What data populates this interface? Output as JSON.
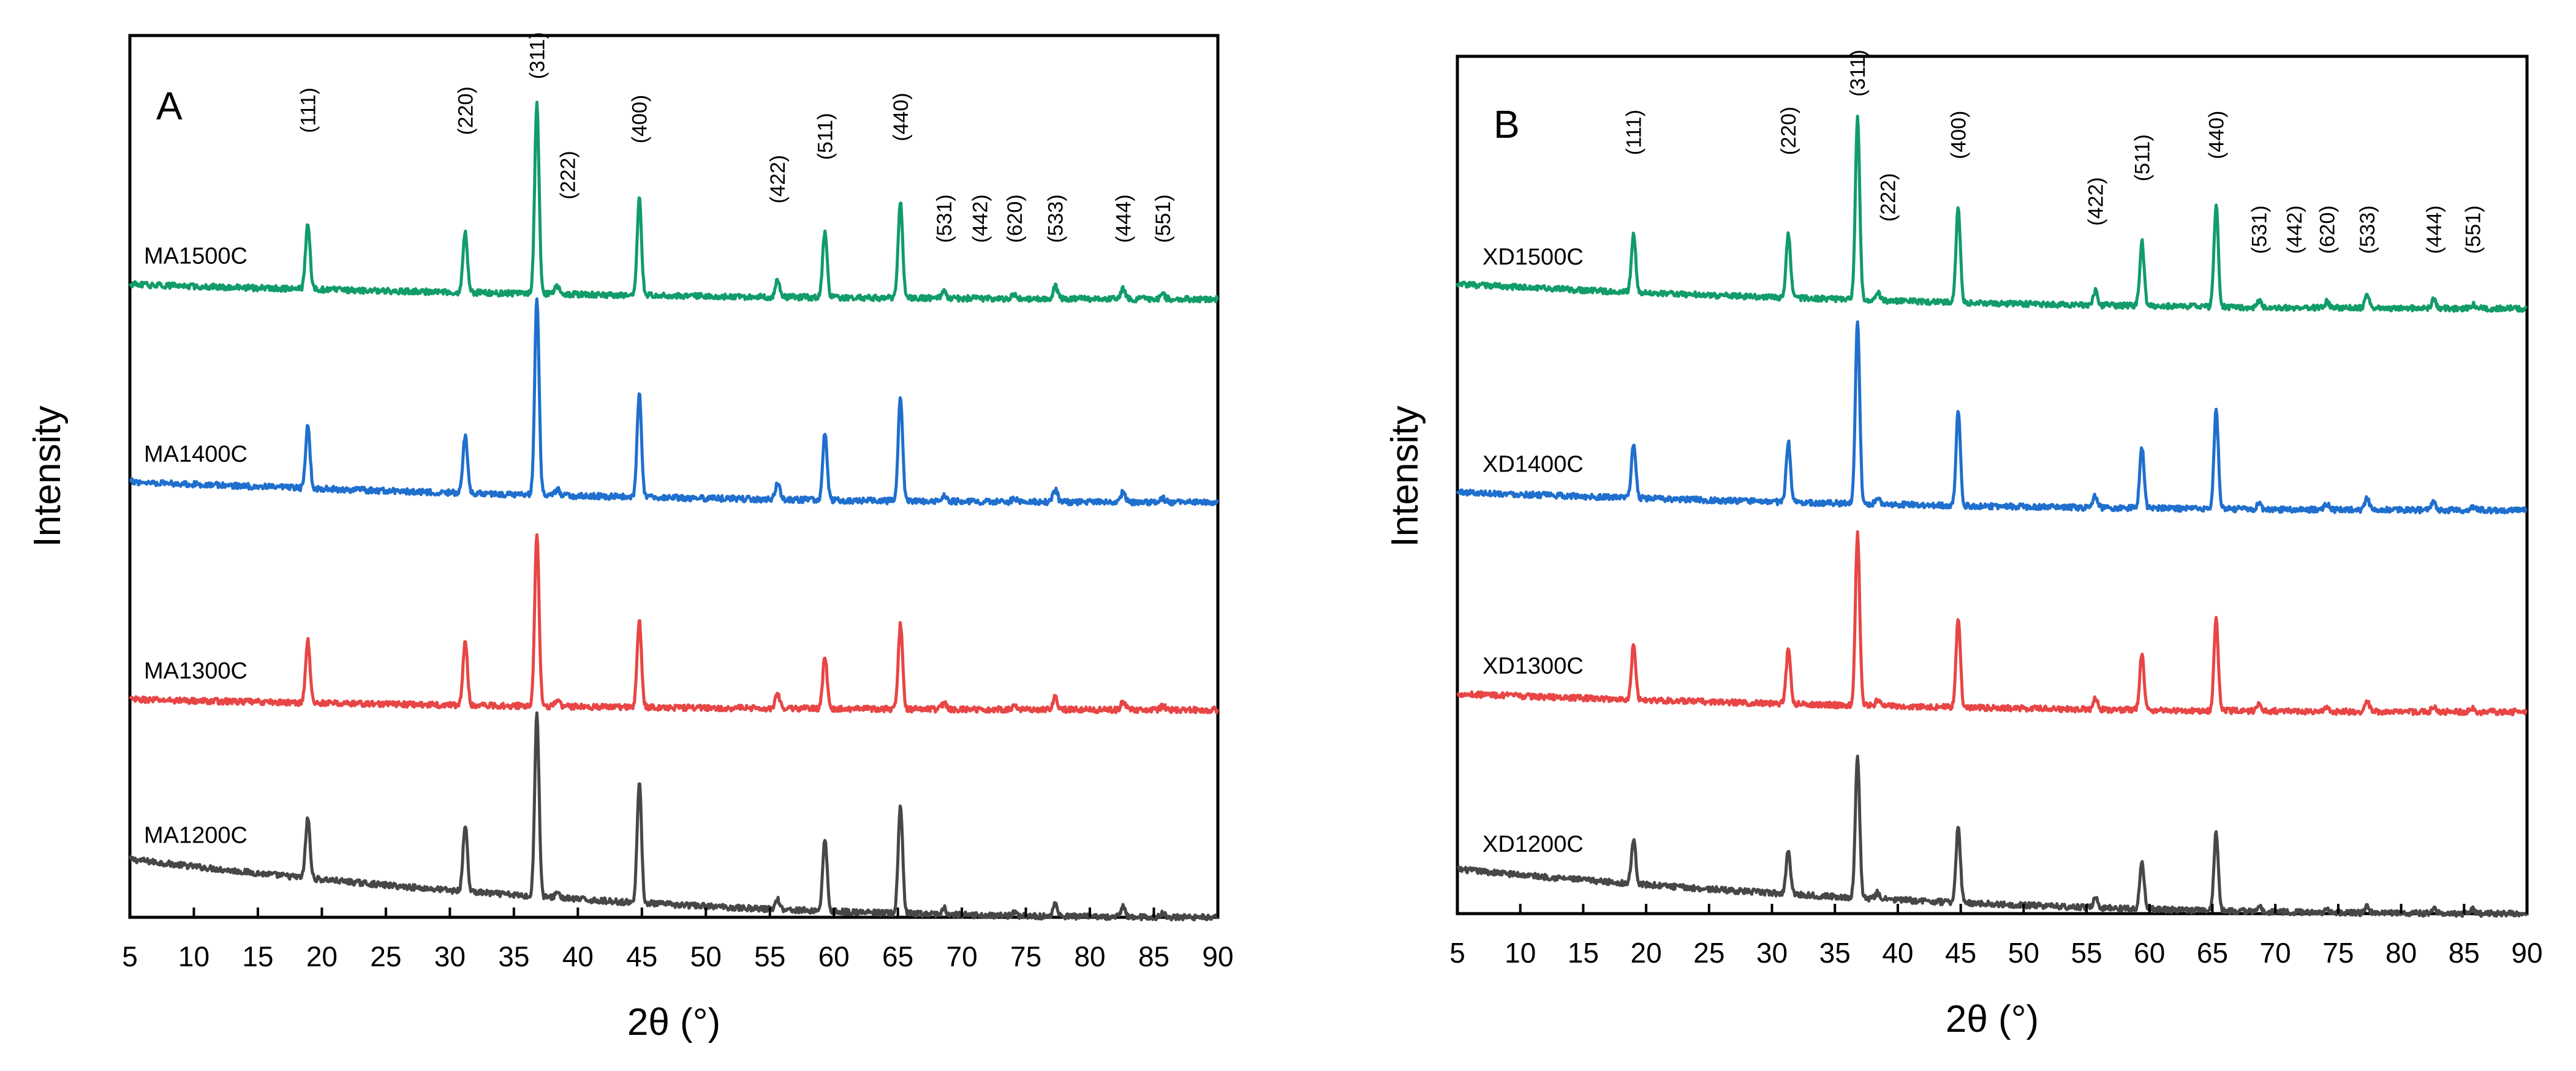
{
  "figure": {
    "panels": [
      {
        "letter": "A",
        "xlabel": "2θ (°)",
        "ylabel": "Intensity",
        "ticks": [
          "5",
          "10",
          "15",
          "20",
          "25",
          "30",
          "35",
          "40",
          "45",
          "50",
          "55",
          "60",
          "65",
          "70",
          "75",
          "80",
          "85",
          "90"
        ]
      },
      {
        "letter": "B",
        "xlabel": "2θ (°)",
        "ylabel": "Intensity",
        "ticks": [
          "5",
          "10",
          "15",
          "20",
          "25",
          "30",
          "35",
          "40",
          "45",
          "50",
          "55",
          "60",
          "65",
          "70",
          "75",
          "80",
          "85",
          "90"
        ]
      }
    ]
  },
  "chart_data": [
    {
      "type": "line",
      "panel": "A",
      "title": "",
      "xlabel": "2θ (°)",
      "ylabel": "Intensity",
      "xlim": [
        5,
        90
      ],
      "ylim": [
        0,
        4.25
      ],
      "xticks": [
        5,
        10,
        15,
        20,
        25,
        30,
        35,
        40,
        45,
        50,
        55,
        60,
        65,
        70,
        75,
        80,
        85,
        90
      ],
      "yticks": [],
      "grid": false,
      "stack_spacing": 1.0,
      "peak_width_deg": 0.17,
      "series": [
        {
          "name": "MA1200C",
          "color": "#474747",
          "offset": 0,
          "baseline_start": 0.28,
          "baseline_end": 0.0,
          "peaks": [
            [
              18.9,
              0.29
            ],
            [
              31.2,
              0.32
            ],
            [
              36.8,
              0.88
            ],
            [
              38.4,
              0.03
            ],
            [
              44.8,
              0.58
            ],
            [
              55.6,
              0.05
            ],
            [
              59.3,
              0.35
            ],
            [
              65.2,
              0.52
            ],
            [
              68.6,
              0.03
            ],
            [
              74.1,
              0.02
            ],
            [
              77.3,
              0.06
            ],
            [
              82.6,
              0.05
            ],
            [
              85.7,
              0.02
            ]
          ]
        },
        {
          "name": "MA1300C",
          "color": "#e84545",
          "offset": 1,
          "baseline_start": 0.05,
          "baseline_end": 0.0,
          "peaks": [
            [
              18.9,
              0.3
            ],
            [
              31.2,
              0.31
            ],
            [
              36.8,
              0.84
            ],
            [
              38.4,
              0.03
            ],
            [
              44.8,
              0.42
            ],
            [
              55.6,
              0.07
            ],
            [
              59.3,
              0.25
            ],
            [
              65.2,
              0.41
            ],
            [
              68.6,
              0.03
            ],
            [
              74.1,
              0.02
            ],
            [
              77.3,
              0.06
            ],
            [
              82.6,
              0.04
            ],
            [
              85.7,
              0.02
            ]
          ]
        },
        {
          "name": "MA1400C",
          "color": "#1f6fce",
          "offset": 2,
          "baseline_start": 0.1,
          "baseline_end": 0.0,
          "peaks": [
            [
              18.9,
              0.3
            ],
            [
              31.2,
              0.28
            ],
            [
              36.8,
              0.95
            ],
            [
              38.4,
              0.03
            ],
            [
              44.8,
              0.5
            ],
            [
              55.6,
              0.08
            ],
            [
              59.3,
              0.32
            ],
            [
              65.2,
              0.51
            ],
            [
              68.6,
              0.03
            ],
            [
              74.1,
              0.02
            ],
            [
              77.3,
              0.06
            ],
            [
              82.6,
              0.05
            ],
            [
              85.7,
              0.02
            ]
          ]
        },
        {
          "name": "MA1500C",
          "color": "#119c69",
          "offset": 3,
          "baseline_start": 0.05,
          "baseline_end": -0.02,
          "peaks": [
            [
              18.9,
              0.32
            ],
            [
              31.2,
              0.29
            ],
            [
              36.8,
              0.92
            ],
            [
              38.4,
              0.04
            ],
            [
              44.8,
              0.47
            ],
            [
              55.6,
              0.08
            ],
            [
              59.3,
              0.32
            ],
            [
              65.2,
              0.46
            ],
            [
              68.6,
              0.03
            ],
            [
              74.1,
              0.02
            ],
            [
              77.3,
              0.06
            ],
            [
              82.6,
              0.05
            ],
            [
              85.7,
              0.02
            ]
          ]
        }
      ],
      "annotations": [
        {
          "label": "(111)",
          "x": 18.9,
          "y": 3.78
        },
        {
          "label": "(220)",
          "x": 31.2,
          "y": 3.77
        },
        {
          "label": "(311)",
          "x": 36.8,
          "y": 4.04
        },
        {
          "label": "(222)",
          "x": 39.2,
          "y": 3.46
        },
        {
          "label": "(400)",
          "x": 44.8,
          "y": 3.73
        },
        {
          "label": "(422)",
          "x": 55.6,
          "y": 3.44
        },
        {
          "label": "(511)",
          "x": 59.3,
          "y": 3.65
        },
        {
          "label": "(440)",
          "x": 65.2,
          "y": 3.74
        },
        {
          "label": "(531)",
          "x": 68.6,
          "y": 3.25
        },
        {
          "label": "(442)",
          "x": 71.4,
          "y": 3.25
        },
        {
          "label": "(620)",
          "x": 74.1,
          "y": 3.25
        },
        {
          "label": "(533)",
          "x": 77.3,
          "y": 3.25
        },
        {
          "label": "(444)",
          "x": 82.6,
          "y": 3.25
        },
        {
          "label": "(551)",
          "x": 85.7,
          "y": 3.25
        }
      ]
    },
    {
      "type": "line",
      "panel": "B",
      "title": "",
      "xlabel": "2θ (°)",
      "ylabel": "Intensity",
      "xlim": [
        5,
        90
      ],
      "ylim": [
        0,
        4.25
      ],
      "xticks": [
        5,
        10,
        15,
        20,
        25,
        30,
        35,
        40,
        45,
        50,
        55,
        60,
        65,
        70,
        75,
        80,
        85,
        90
      ],
      "yticks": [],
      "grid": false,
      "stack_spacing": 1.0,
      "peak_width_deg": 0.17,
      "series": [
        {
          "name": "XD1200C",
          "color": "#474747",
          "offset": 0,
          "baseline_start": 0.22,
          "baseline_end": 0.0,
          "peaks": [
            [
              19.0,
              0.22
            ],
            [
              31.3,
              0.22
            ],
            [
              36.8,
              0.7
            ],
            [
              38.4,
              0.03
            ],
            [
              44.8,
              0.38
            ],
            [
              55.7,
              0.05
            ],
            [
              59.4,
              0.23
            ],
            [
              65.3,
              0.39
            ],
            [
              68.7,
              0.03
            ],
            [
              74.1,
              0.02
            ],
            [
              77.3,
              0.04
            ],
            [
              82.6,
              0.03
            ],
            [
              85.7,
              0.02
            ]
          ]
        },
        {
          "name": "XD1300C",
          "color": "#e84545",
          "offset": 1,
          "baseline_start": 0.09,
          "baseline_end": 0.0,
          "peaks": [
            [
              19.0,
              0.27
            ],
            [
              31.3,
              0.27
            ],
            [
              36.8,
              0.85
            ],
            [
              38.4,
              0.03
            ],
            [
              44.8,
              0.44
            ],
            [
              55.7,
              0.06
            ],
            [
              59.4,
              0.28
            ],
            [
              65.3,
              0.45
            ],
            [
              68.7,
              0.03
            ],
            [
              74.1,
              0.02
            ],
            [
              77.3,
              0.05
            ],
            [
              82.6,
              0.03
            ],
            [
              85.7,
              0.02
            ]
          ]
        },
        {
          "name": "XD1400C",
          "color": "#1f6fce",
          "offset": 2,
          "baseline_start": 0.09,
          "baseline_end": 0.0,
          "peaks": [
            [
              19.0,
              0.27
            ],
            [
              31.3,
              0.3
            ],
            [
              36.8,
              0.91
            ],
            [
              38.4,
              0.03
            ],
            [
              44.8,
              0.47
            ],
            [
              55.7,
              0.06
            ],
            [
              59.4,
              0.3
            ],
            [
              65.3,
              0.5
            ],
            [
              68.7,
              0.03
            ],
            [
              74.1,
              0.03
            ],
            [
              77.3,
              0.06
            ],
            [
              82.6,
              0.04
            ],
            [
              85.7,
              0.02
            ]
          ]
        },
        {
          "name": "XD1500C",
          "color": "#119c69",
          "offset": 3,
          "baseline_start": 0.12,
          "baseline_end": 0.0,
          "peaks": [
            [
              19.0,
              0.29
            ],
            [
              31.3,
              0.32
            ],
            [
              36.8,
              0.91
            ],
            [
              38.4,
              0.04
            ],
            [
              44.8,
              0.47
            ],
            [
              55.7,
              0.07
            ],
            [
              59.4,
              0.32
            ],
            [
              65.3,
              0.5
            ],
            [
              68.7,
              0.03
            ],
            [
              74.1,
              0.03
            ],
            [
              77.3,
              0.06
            ],
            [
              82.6,
              0.05
            ],
            [
              85.7,
              0.02
            ]
          ]
        }
      ],
      "annotations": [
        {
          "label": "(111)",
          "x": 19.0,
          "y": 3.76
        },
        {
          "label": "(220)",
          "x": 31.3,
          "y": 3.76
        },
        {
          "label": "(311)",
          "x": 36.8,
          "y": 4.05
        },
        {
          "label": "(222)",
          "x": 39.2,
          "y": 3.43
        },
        {
          "label": "(400)",
          "x": 44.8,
          "y": 3.74
        },
        {
          "label": "(422)",
          "x": 55.7,
          "y": 3.41
        },
        {
          "label": "(511)",
          "x": 59.4,
          "y": 3.63
        },
        {
          "label": "(440)",
          "x": 65.3,
          "y": 3.74
        },
        {
          "label": "(531)",
          "x": 68.7,
          "y": 3.27
        },
        {
          "label": "(442)",
          "x": 71.5,
          "y": 3.27
        },
        {
          "label": "(620)",
          "x": 74.1,
          "y": 3.27
        },
        {
          "label": "(533)",
          "x": 77.3,
          "y": 3.27
        },
        {
          "label": "(444)",
          "x": 82.6,
          "y": 3.27
        },
        {
          "label": "(551)",
          "x": 85.7,
          "y": 3.27
        }
      ]
    }
  ]
}
